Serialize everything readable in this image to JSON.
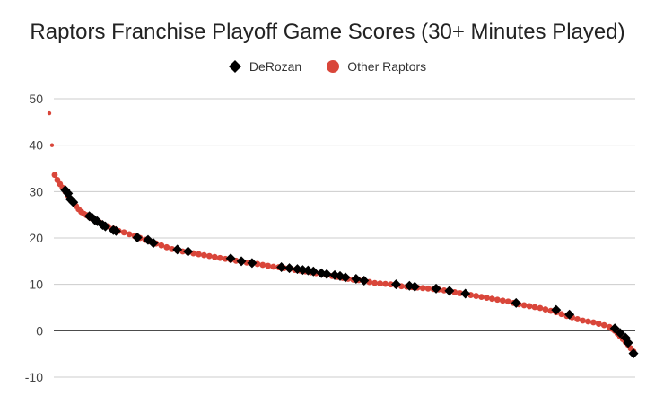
{
  "chart_data": {
    "type": "scatter",
    "title": "Raptors Franchise Playoff Game Scores (30+ Minutes Played)",
    "xlabel": "",
    "ylabel": "",
    "ylim": [
      -10,
      50
    ],
    "yticks": [
      -10,
      0,
      10,
      20,
      30,
      40,
      50
    ],
    "grid": true,
    "legend_position": "top",
    "series": [
      {
        "name": "DeRozan",
        "marker": "diamond",
        "color": "#000000",
        "points": [
          [
            6,
            30.3
          ],
          [
            7,
            29.6
          ],
          [
            8,
            28.3
          ],
          [
            9,
            27.7
          ],
          [
            15,
            24.7
          ],
          [
            16,
            24.4
          ],
          [
            17,
            23.9
          ],
          [
            18,
            23.6
          ],
          [
            20,
            22.8
          ],
          [
            21,
            22.5
          ],
          [
            24,
            21.7
          ],
          [
            25,
            21.5
          ],
          [
            33,
            20.1
          ],
          [
            37,
            19.6
          ],
          [
            39,
            18.9
          ],
          [
            48,
            17.5
          ],
          [
            52,
            17.1
          ],
          [
            68,
            15.6
          ],
          [
            72,
            15.0
          ],
          [
            76,
            14.6
          ],
          [
            87,
            13.7
          ],
          [
            90,
            13.5
          ],
          [
            93,
            13.3
          ],
          [
            95,
            13.1
          ],
          [
            97,
            13.0
          ],
          [
            99,
            12.8
          ],
          [
            102,
            12.4
          ],
          [
            104,
            12.2
          ],
          [
            107,
            12.0
          ],
          [
            109,
            11.8
          ],
          [
            111,
            11.5
          ],
          [
            115,
            11.2
          ],
          [
            118,
            10.8
          ],
          [
            130,
            10.0
          ],
          [
            135,
            9.7
          ],
          [
            137,
            9.5
          ],
          [
            145,
            9.1
          ],
          [
            150,
            8.6
          ],
          [
            156,
            8.0
          ],
          [
            175,
            6.0
          ],
          [
            190,
            4.5
          ],
          [
            195,
            3.5
          ],
          [
            212,
            0.5
          ],
          [
            214,
            -0.5
          ],
          [
            216,
            -1.5
          ],
          [
            217,
            -2.6
          ],
          [
            219,
            -4.9
          ]
        ]
      },
      {
        "name": "Other Raptors",
        "marker": "circle",
        "color": "#d9463a",
        "points": [
          [
            0,
            46.9
          ],
          [
            1,
            40.0
          ],
          [
            2,
            33.6
          ],
          [
            3,
            32.5
          ],
          [
            4,
            31.6
          ],
          [
            5,
            30.8
          ],
          [
            6,
            30.0
          ],
          [
            7,
            29.2
          ],
          [
            8,
            28.4
          ],
          [
            9,
            27.6
          ],
          [
            10,
            26.9
          ],
          [
            11,
            26.2
          ],
          [
            12,
            25.6
          ],
          [
            13,
            25.2
          ],
          [
            14,
            24.9
          ],
          [
            15,
            24.5
          ],
          [
            16,
            24.2
          ],
          [
            17,
            23.9
          ],
          [
            18,
            23.6
          ],
          [
            19,
            23.3
          ],
          [
            20,
            23.0
          ],
          [
            22,
            22.5
          ],
          [
            24,
            22.0
          ],
          [
            26,
            21.5
          ],
          [
            28,
            21.2
          ],
          [
            30,
            20.8
          ],
          [
            32,
            20.4
          ],
          [
            34,
            20.0
          ],
          [
            36,
            19.6
          ],
          [
            38,
            19.2
          ],
          [
            40,
            18.8
          ],
          [
            42,
            18.4
          ],
          [
            44,
            18.0
          ],
          [
            46,
            17.6
          ],
          [
            48,
            17.3
          ],
          [
            50,
            17.1
          ],
          [
            52,
            16.9
          ],
          [
            54,
            16.7
          ],
          [
            56,
            16.5
          ],
          [
            58,
            16.3
          ],
          [
            60,
            16.1
          ],
          [
            62,
            15.9
          ],
          [
            64,
            15.7
          ],
          [
            66,
            15.5
          ],
          [
            68,
            15.3
          ],
          [
            70,
            15.1
          ],
          [
            72,
            14.9
          ],
          [
            74,
            14.7
          ],
          [
            76,
            14.5
          ],
          [
            78,
            14.4
          ],
          [
            80,
            14.2
          ],
          [
            82,
            14.0
          ],
          [
            84,
            13.8
          ],
          [
            86,
            13.7
          ],
          [
            88,
            13.5
          ],
          [
            90,
            13.3
          ],
          [
            92,
            13.1
          ],
          [
            94,
            13.0
          ],
          [
            96,
            12.8
          ],
          [
            98,
            12.6
          ],
          [
            100,
            12.4
          ],
          [
            102,
            12.2
          ],
          [
            104,
            12.0
          ],
          [
            106,
            11.8
          ],
          [
            108,
            11.6
          ],
          [
            110,
            11.4
          ],
          [
            112,
            11.2
          ],
          [
            114,
            11.0
          ],
          [
            116,
            10.9
          ],
          [
            118,
            10.7
          ],
          [
            120,
            10.5
          ],
          [
            122,
            10.3
          ],
          [
            124,
            10.2
          ],
          [
            126,
            10.1
          ],
          [
            128,
            10.0
          ],
          [
            130,
            9.8
          ],
          [
            132,
            9.6
          ],
          [
            134,
            9.5
          ],
          [
            136,
            9.4
          ],
          [
            138,
            9.3
          ],
          [
            140,
            9.2
          ],
          [
            142,
            9.1
          ],
          [
            144,
            9.0
          ],
          [
            146,
            8.9
          ],
          [
            148,
            8.7
          ],
          [
            150,
            8.5
          ],
          [
            152,
            8.3
          ],
          [
            154,
            8.1
          ],
          [
            156,
            7.9
          ],
          [
            158,
            7.7
          ],
          [
            160,
            7.5
          ],
          [
            162,
            7.3
          ],
          [
            164,
            7.1
          ],
          [
            166,
            6.9
          ],
          [
            168,
            6.7
          ],
          [
            170,
            6.5
          ],
          [
            172,
            6.3
          ],
          [
            174,
            6.0
          ],
          [
            176,
            5.7
          ],
          [
            178,
            5.5
          ],
          [
            180,
            5.3
          ],
          [
            182,
            5.1
          ],
          [
            184,
            4.9
          ],
          [
            186,
            4.6
          ],
          [
            188,
            4.3
          ],
          [
            190,
            4.0
          ],
          [
            192,
            3.6
          ],
          [
            194,
            3.2
          ],
          [
            196,
            2.9
          ],
          [
            198,
            2.5
          ],
          [
            200,
            2.2
          ],
          [
            202,
            2.0
          ],
          [
            204,
            1.8
          ],
          [
            206,
            1.5
          ],
          [
            208,
            1.2
          ],
          [
            210,
            0.8
          ],
          [
            211,
            0.4
          ],
          [
            212,
            0.0
          ],
          [
            213,
            -0.6
          ],
          [
            214,
            -1.2
          ],
          [
            215,
            -1.8
          ],
          [
            216,
            -2.4
          ],
          [
            217,
            -3.0
          ],
          [
            218,
            -3.8
          ],
          [
            219,
            -4.5
          ]
        ]
      }
    ]
  }
}
